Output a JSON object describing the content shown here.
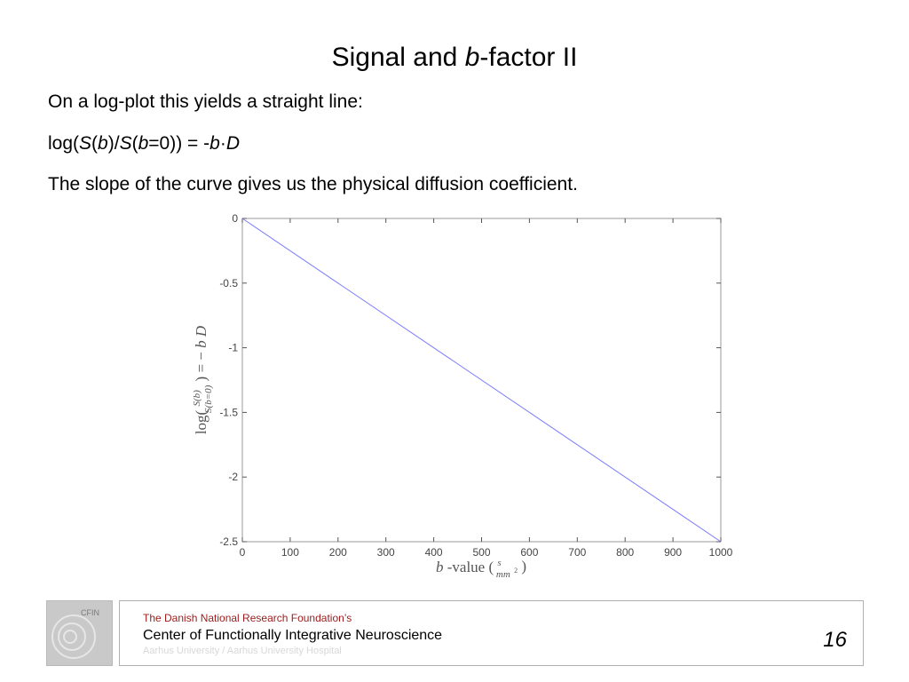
{
  "slide": {
    "title_pre": "Signal and ",
    "title_italic": "b",
    "title_post": "-factor II",
    "line1": "On a log-plot this yields a straight line:",
    "line2": {
      "p1": "log(",
      "S1": "S",
      "p2": "(",
      "b1": "b",
      "p3": ")/",
      "S2": "S",
      "p4": "(",
      "b2": "b",
      "p5": "=0)) = -",
      "b3": "b",
      "dot": "·",
      "D": "D"
    },
    "line3": "The slope of the curve gives us the physical diffusion coefficient."
  },
  "chart_data": {
    "type": "line",
    "x": [
      0,
      1000
    ],
    "series": [
      {
        "values": [
          0,
          -2.5
        ],
        "color": "#7b7bff"
      }
    ],
    "xlim": [
      0,
      1000
    ],
    "ylim": [
      -2.5,
      0
    ],
    "xticks": [
      0,
      100,
      200,
      300,
      400,
      500,
      600,
      700,
      800,
      900,
      1000
    ],
    "yticks": [
      0,
      -0.5,
      -1,
      -1.5,
      -2,
      -2.5
    ],
    "ytick_labels": [
      "0",
      "-0.5",
      "-1",
      "-1.5",
      "-2",
      "-2.5"
    ],
    "xlabel": {
      "b": "b",
      "text": "-value (",
      "num": "s",
      "den": "mm",
      "exp": "2",
      "close": ")"
    },
    "ylabel": {
      "log": "log(",
      "num": "S(b)",
      "den": "S(b=0)",
      "mid": ") = −",
      "b": "b",
      "D": "D"
    },
    "grid": false
  },
  "footer": {
    "logo_text": "CFIN",
    "line1": "The Danish National Research Foundation’s",
    "line2": "Center of Functionally Integrative Neuroscience",
    "line3": "Aarhus University / Aarhus University Hospital",
    "page_number": "16"
  }
}
